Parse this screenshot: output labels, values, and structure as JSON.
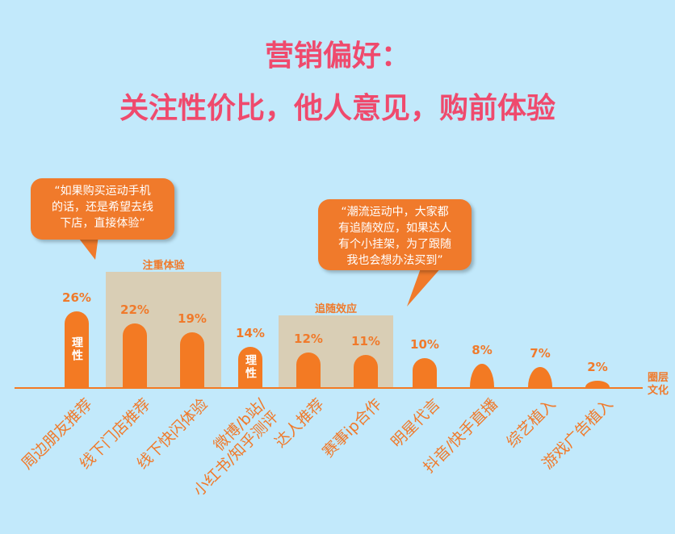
{
  "title": {
    "line1": "营销偏好：",
    "line2": "关注性价比，他人意见，购前体验"
  },
  "bubbles": {
    "left": [
      "“如果购买运动手机",
      "的话，还是希望去线",
      "下店，直接体验”"
    ],
    "right": [
      "“潮流运动中，大家都",
      "有追随效应，如果达人",
      "有个小挂架，为了跟随",
      "我也会想办法买到”"
    ]
  },
  "highlights": [
    {
      "label": "注重体验"
    },
    {
      "label": "追随效应"
    }
  ],
  "axis_caption": [
    "圈层",
    "文化"
  ],
  "colors": {
    "background": "#c2e9fb",
    "title": "#ef4a6d",
    "bar": "#f37a23",
    "highlight": "#d9ceb5"
  },
  "chart_data": {
    "type": "bar",
    "ylim": [
      0,
      30
    ],
    "categories": [
      [
        "周边朋友推荐"
      ],
      [
        "线下门店推荐"
      ],
      [
        "线下快闪体验"
      ],
      [
        "微博/b站/",
        "小红书/知乎测评"
      ],
      [
        "达人推荐"
      ],
      [
        "赛事ip合作"
      ],
      [
        "明星代言"
      ],
      [
        "抖音/快手直播"
      ],
      [
        "综艺植入"
      ],
      [
        "游戏广告植入"
      ]
    ],
    "values": [
      26,
      22,
      19,
      14,
      12,
      11,
      10,
      8,
      7,
      2
    ],
    "value_labels": [
      "26%",
      "22%",
      "19%",
      "14%",
      "12%",
      "11%",
      "10%",
      "8%",
      "7%",
      "2%"
    ],
    "bar_text": [
      "理性",
      "",
      "",
      "理性",
      "",
      "",
      "",
      "",
      "",
      ""
    ]
  }
}
